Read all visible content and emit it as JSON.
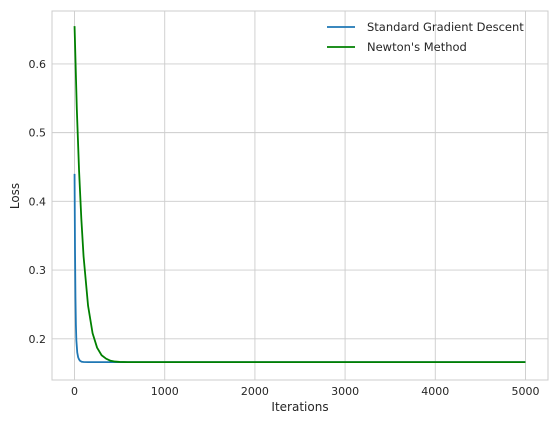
{
  "chart_data": {
    "type": "line",
    "title": "",
    "xlabel": "Iterations",
    "ylabel": "Loss",
    "xlim": [
      -250,
      5250
    ],
    "ylim": [
      0.14,
      0.677
    ],
    "xticks": [
      0,
      1000,
      2000,
      3000,
      4000,
      5000
    ],
    "yticks": [
      0.2,
      0.3,
      0.4,
      0.5,
      0.6
    ],
    "xtick_labels": [
      "0",
      "1000",
      "2000",
      "3000",
      "4000",
      "5000"
    ],
    "ytick_labels": [
      "0.2",
      "0.3",
      "0.4",
      "0.5",
      "0.6"
    ],
    "grid": true,
    "legend_position": "top-right",
    "series": [
      {
        "name": "Standard Gradient Descent",
        "color": "#1f77b4",
        "x": [
          0,
          5,
          10,
          15,
          20,
          30,
          40,
          50,
          60,
          80,
          100,
          150,
          200,
          300,
          500,
          1000,
          2000,
          3000,
          4000,
          5000
        ],
        "y": [
          0.44,
          0.33,
          0.26,
          0.22,
          0.198,
          0.18,
          0.173,
          0.17,
          0.168,
          0.1665,
          0.1662,
          0.166,
          0.166,
          0.166,
          0.166,
          0.166,
          0.166,
          0.166,
          0.166,
          0.166
        ]
      },
      {
        "name": "Newton's Method",
        "color": "#008000",
        "x": [
          0,
          25,
          50,
          75,
          100,
          150,
          200,
          250,
          300,
          350,
          400,
          450,
          500,
          600,
          700,
          800,
          1000,
          2000,
          3000,
          4000,
          5000
        ],
        "y": [
          0.655,
          0.535,
          0.445,
          0.375,
          0.32,
          0.248,
          0.208,
          0.187,
          0.176,
          0.171,
          0.168,
          0.1668,
          0.1663,
          0.166,
          0.166,
          0.166,
          0.166,
          0.166,
          0.166,
          0.166,
          0.166
        ]
      }
    ]
  }
}
